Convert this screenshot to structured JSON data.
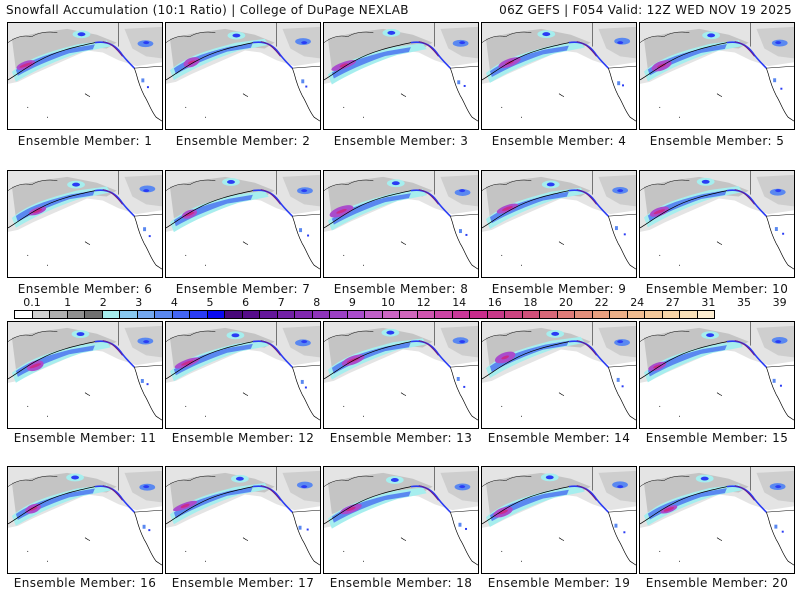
{
  "header": {
    "title_left": "Snowfall Accumulation (10:1 Ratio) | College of DuPage NEXLAB",
    "title_right": "06Z GEFS | F054 Valid: 12Z WED NOV 19 2025"
  },
  "panel_label_prefix": "Ensemble Member:",
  "members": [
    {
      "label": "Ensemble Member: 1",
      "member": 1
    },
    {
      "label": "Ensemble Member: 2",
      "member": 2
    },
    {
      "label": "Ensemble Member: 3",
      "member": 3
    },
    {
      "label": "Ensemble Member: 4",
      "member": 4
    },
    {
      "label": "Ensemble Member: 5",
      "member": 5
    },
    {
      "label": "Ensemble Member: 6",
      "member": 6
    },
    {
      "label": "Ensemble Member: 7",
      "member": 7
    },
    {
      "label": "Ensemble Member: 8",
      "member": 8
    },
    {
      "label": "Ensemble Member: 9",
      "member": 9
    },
    {
      "label": "Ensemble Member: 10",
      "member": 10
    },
    {
      "label": "Ensemble Member: 11",
      "member": 11
    },
    {
      "label": "Ensemble Member: 12",
      "member": 12
    },
    {
      "label": "Ensemble Member: 13",
      "member": 13
    },
    {
      "label": "Ensemble Member: 14",
      "member": 14
    },
    {
      "label": "Ensemble Member: 15",
      "member": 15
    },
    {
      "label": "Ensemble Member: 16",
      "member": 16
    },
    {
      "label": "Ensemble Member: 17",
      "member": 17
    },
    {
      "label": "Ensemble Member: 18",
      "member": 18
    },
    {
      "label": "Ensemble Member: 19",
      "member": 19
    },
    {
      "label": "Ensemble Member: 20",
      "member": 20
    }
  ],
  "colorbar": {
    "labels": [
      "0.1",
      "1",
      "2",
      "3",
      "4",
      "5",
      "6",
      "7",
      "8",
      "9",
      "10",
      "12",
      "14",
      "16",
      "18",
      "20",
      "22",
      "24",
      "27",
      "31",
      "35",
      "39"
    ],
    "colors": [
      "#ffffff",
      "#d0d0d0",
      "#b0b0b0",
      "#909090",
      "#707070",
      "#a6eeee",
      "#88c8f0",
      "#74a8f0",
      "#5a88f0",
      "#4466f4",
      "#2a3cf4",
      "#0a0af0",
      "#48087a",
      "#560c8a",
      "#64169a",
      "#7220a6",
      "#8028b0",
      "#8e34ba",
      "#9c40c4",
      "#aa4ccc",
      "#c060c8",
      "#cc66c4",
      "#d066bc",
      "#d054b0",
      "#cc44a4",
      "#c83898",
      "#c82c8c",
      "#c83888",
      "#cc4480",
      "#d0507a",
      "#d86878",
      "#e07c78",
      "#e4907c",
      "#e8a080",
      "#ecb088",
      "#f0bc90",
      "#f4c89a",
      "#f6d4a8",
      "#f8e0b8",
      "#fcecd0"
    ]
  },
  "palette": {
    "land_gray_light": "#e4e4e4",
    "land_gray_mid": "#bcbcbc",
    "snow_light_blue": "#a6eeee",
    "snow_blue": "#5a88f0",
    "snow_deep_blue": "#2a3cf4",
    "snow_purple": "#aa4ccc",
    "snow_magenta": "#c82c8c"
  }
}
